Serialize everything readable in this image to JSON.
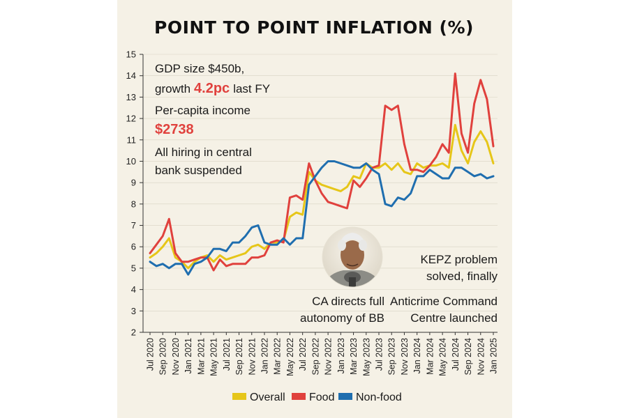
{
  "chart_data": {
    "type": "line",
    "title": "POINT TO POINT INFLATION (%)",
    "ylim": [
      2,
      15
    ],
    "yticks": [
      "2",
      "3",
      "4",
      "5",
      "6",
      "7",
      "8",
      "9",
      "10",
      "11",
      "12",
      "13",
      "14",
      "15"
    ],
    "months": [
      "Jul 2020",
      "Aug 2020",
      "Sep 2020",
      "Oct 2020",
      "Nov 2020",
      "Dec 2020",
      "Jan 2021",
      "Feb 2021",
      "Mar 2021",
      "Apr 2021",
      "May 2021",
      "Jun 2021",
      "Jul 2021",
      "Aug 2021",
      "Sep 2021",
      "Oct 2021",
      "Nov 2021",
      "Dec 2021",
      "Jan 2022",
      "Feb 2022",
      "Mar 2022",
      "Apr 2022",
      "May 2022",
      "Jun 2022",
      "Jul 2022",
      "Aug 2022",
      "Sep 2022",
      "Oct 2022",
      "Nov 2022",
      "Dec 2022",
      "Jan 2023",
      "Feb 2023",
      "Mar 2023",
      "Apr 2023",
      "May 2023",
      "Jun 2023",
      "Jul 2023",
      "Aug 2023",
      "Sep 2023",
      "Oct 2023",
      "Nov 2023",
      "Dec 2023",
      "Jan 2024",
      "Feb 2024",
      "Mar 2024",
      "Apr 2024",
      "May 2024",
      "Jun 2024",
      "Jul 2024",
      "Aug 2024",
      "Sep 2024",
      "Oct 2024",
      "Nov 2024",
      "Dec 2024",
      "Jan 2025"
    ],
    "xtick_labels": [
      "Jul 2020",
      "Sep 2020",
      "Nov 2020",
      "Jan 2021",
      "Mar 2021",
      "May 2021",
      "Jul 2021",
      "Sep 2021",
      "Nov 2021",
      "Jan 2022",
      "Mar 2022",
      "May 2022",
      "Jul 2022",
      "Sep 2022",
      "Nov 2022",
      "Jan 2023",
      "Mar 2023",
      "May 2023",
      "Jul 2023",
      "Sep 2023",
      "Nov 2023",
      "Jan 2024",
      "Mar 2024",
      "May 2024",
      "Jul 2024",
      "Sep 2024",
      "Nov 2024",
      "Jan 2025"
    ],
    "series": [
      {
        "name": "Overall",
        "color": "#e6c619",
        "values": [
          5.5,
          5.7,
          6.0,
          6.4,
          5.5,
          5.3,
          5.0,
          5.3,
          5.5,
          5.6,
          5.3,
          5.6,
          5.4,
          5.5,
          5.6,
          5.7,
          6.0,
          6.1,
          5.9,
          6.2,
          6.2,
          6.3,
          7.4,
          7.6,
          7.5,
          9.5,
          9.1,
          8.9,
          8.8,
          8.7,
          8.6,
          8.8,
          9.3,
          9.2,
          9.9,
          9.7,
          9.7,
          9.9,
          9.6,
          9.9,
          9.5,
          9.4,
          9.9,
          9.7,
          9.8,
          9.8,
          9.9,
          9.7,
          11.7,
          10.5,
          9.9,
          10.9,
          11.4,
          10.9,
          9.9
        ]
      },
      {
        "name": "Food",
        "color": "#e0413d",
        "values": [
          5.7,
          6.1,
          6.5,
          7.3,
          5.7,
          5.3,
          5.3,
          5.4,
          5.5,
          5.5,
          4.9,
          5.4,
          5.1,
          5.2,
          5.2,
          5.2,
          5.5,
          5.5,
          5.6,
          6.2,
          6.3,
          6.2,
          8.3,
          8.4,
          8.2,
          9.9,
          9.1,
          8.5,
          8.1,
          8.0,
          7.9,
          7.8,
          9.1,
          8.8,
          9.2,
          9.7,
          9.8,
          12.6,
          12.4,
          12.6,
          10.8,
          9.6,
          9.6,
          9.5,
          9.8,
          10.2,
          10.8,
          10.4,
          14.1,
          11.3,
          10.4,
          12.7,
          13.8,
          12.9,
          10.7
        ]
      },
      {
        "name": "Non-food",
        "color": "#1f6eaf",
        "values": [
          5.3,
          5.1,
          5.2,
          5.0,
          5.2,
          5.2,
          4.7,
          5.2,
          5.3,
          5.5,
          5.9,
          5.9,
          5.8,
          6.2,
          6.2,
          6.5,
          6.9,
          7.0,
          6.2,
          6.1,
          6.1,
          6.4,
          6.1,
          6.4,
          6.4,
          8.9,
          9.3,
          9.7,
          10.0,
          10.0,
          9.9,
          9.8,
          9.7,
          9.7,
          9.9,
          9.6,
          9.4,
          8.0,
          7.9,
          8.3,
          8.2,
          8.5,
          9.3,
          9.3,
          9.6,
          9.4,
          9.2,
          9.2,
          9.7,
          9.7,
          9.5,
          9.3,
          9.4,
          9.2,
          9.3
        ]
      }
    ]
  },
  "annotations": {
    "gdp_line1": "GDP size $450b,",
    "gdp_line2_prefix": "growth",
    "gdp_line2_value": "4.2pc",
    "gdp_line2_suffix": "last FY",
    "percapita_line1": "Per-capita income",
    "percapita_value": "$2738",
    "hiring_line1": "All hiring in central",
    "hiring_line2": "bank suspended",
    "kepz_line1": "KEPZ problem",
    "kepz_line2": "solved, finally",
    "ca_line1": "CA directs full",
    "ca_line2": "autonomy of BB",
    "anticrime_line1": "Anticrime Command",
    "anticrime_line2": "Centre launched"
  },
  "legend": [
    {
      "label": "Overall",
      "color": "#e6c619"
    },
    {
      "label": "Food",
      "color": "#e0413d"
    },
    {
      "label": "Non-food",
      "color": "#1f6eaf"
    }
  ]
}
